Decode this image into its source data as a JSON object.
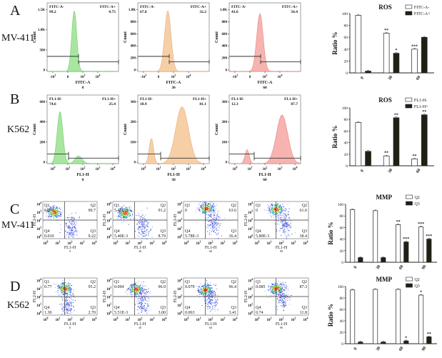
{
  "rows": [
    {
      "letter": "A",
      "cell_line": "MV-411"
    },
    {
      "letter": "B",
      "cell_line": "K562"
    },
    {
      "letter": "C",
      "cell_line": "MV-411"
    },
    {
      "letter": "D",
      "cell_line": "K562"
    }
  ],
  "chart_data": [
    {
      "id": "A-hist-0",
      "type": "area",
      "row": "A",
      "condition": "0",
      "xlabel": "FITC-A",
      "ylabel": "Count",
      "xticks": [
        "-10^3",
        "0",
        "10^3",
        "10^4"
      ],
      "yticks": [
        "0",
        "500",
        "1.0K",
        "1.5K"
      ],
      "gate_left": {
        "label": "FITC-A-",
        "value": "99.2"
      },
      "gate_right": {
        "label": "FITC-A+",
        "value": "0.75"
      },
      "color": "#a8e6a0",
      "stroke": "#5cc05c",
      "peaks": [
        {
          "pos": 0.38,
          "height": 0.96,
          "width": 0.035
        }
      ]
    },
    {
      "id": "A-hist-30",
      "type": "area",
      "row": "A",
      "condition": "30",
      "xlabel": "FITC-A",
      "ylabel": "Count",
      "xticks": [
        "-10^3",
        "0",
        "10^3",
        "10^4"
      ],
      "yticks": [
        "0",
        "200",
        "400",
        "600",
        "800",
        "1.0K"
      ],
      "gate_left": {
        "label": "FITC-A-",
        "value": "67.8"
      },
      "gate_right": {
        "label": "FITC-A+",
        "value": "32.2"
      },
      "color": "#f7cfa6",
      "stroke": "#e0a070",
      "peaks": [
        {
          "pos": 0.42,
          "height": 0.96,
          "width": 0.045
        }
      ]
    },
    {
      "id": "A-hist-60",
      "type": "area",
      "row": "A",
      "condition": "60",
      "xlabel": "FITC-A",
      "ylabel": "Count",
      "xticks": [
        "-10^3",
        "0",
        "10^3",
        "10^4"
      ],
      "yticks": [
        "0",
        "200",
        "400",
        "600",
        "800",
        "1.0K"
      ],
      "gate_left": {
        "label": "FITC-A-",
        "value": "43.6"
      },
      "gate_right": {
        "label": "FITC-A+",
        "value": "56.4"
      },
      "color": "#f6b3b0",
      "stroke": "#e07b78",
      "peaks": [
        {
          "pos": 0.43,
          "height": 0.92,
          "width": 0.045
        }
      ]
    },
    {
      "id": "A-bar",
      "type": "bar",
      "row": "A",
      "title": "ROS",
      "xlabel": "",
      "ylabel": "Ratio %",
      "ylim": [
        0,
        100
      ],
      "yticks": [
        0,
        20,
        40,
        60,
        80,
        100
      ],
      "categories": [
        "0",
        "30",
        "60"
      ],
      "series": [
        {
          "name": "FITC-A-",
          "values": [
            97,
            67,
            40
          ],
          "sig": [
            "",
            "**",
            "***"
          ]
        },
        {
          "name": "FITC-A+",
          "values": [
            3,
            33,
            60
          ],
          "sig": [
            "",
            "*",
            ""
          ]
        }
      ]
    },
    {
      "id": "B-hist-0",
      "type": "area",
      "row": "B",
      "condition": "0",
      "xlabel": "FL1-H",
      "ylabel": "Count",
      "xticks": [
        "10^0",
        "10^1",
        "10^2",
        "10^3",
        "10^4"
      ],
      "yticks": [
        "0",
        "200",
        "400",
        "600"
      ],
      "gate_left": {
        "label": "FL1-H-",
        "value": "74.6"
      },
      "gate_right": {
        "label": "FL1-H+",
        "value": "25.4"
      },
      "color": "#a8e6a0",
      "stroke": "#5cc05c",
      "peaks": [
        {
          "pos": 0.18,
          "height": 0.82,
          "width": 0.04
        },
        {
          "pos": 0.44,
          "height": 0.12,
          "width": 0.05
        }
      ]
    },
    {
      "id": "B-hist-30",
      "type": "area",
      "row": "B",
      "condition": "30",
      "xlabel": "FL1-H",
      "ylabel": "Count",
      "xticks": [
        "10^0",
        "10^1",
        "10^2",
        "10^3",
        "10^4"
      ],
      "yticks": [
        "0",
        "100",
        "200",
        "300"
      ],
      "gate_left": {
        "label": "FL1-H-",
        "value": "18.9"
      },
      "gate_right": {
        "label": "FL1-H+",
        "value": "81.1"
      },
      "color": "#f7cfa6",
      "stroke": "#e0a070",
      "peaks": [
        {
          "pos": 0.19,
          "height": 0.4,
          "width": 0.03
        },
        {
          "pos": 0.62,
          "height": 0.9,
          "width": 0.09
        }
      ]
    },
    {
      "id": "B-hist-60",
      "type": "area",
      "row": "B",
      "condition": "60",
      "xlabel": "FL1-H",
      "ylabel": "Count",
      "xticks": [
        "10^0",
        "10^1",
        "10^2",
        "10^3",
        "10^4"
      ],
      "yticks": [
        "0",
        "100",
        "200",
        "300"
      ],
      "gate_left": {
        "label": "FL1-H-",
        "value": "12.3"
      },
      "gate_right": {
        "label": "FL1-H+",
        "value": "87.7"
      },
      "color": "#f6b3b0",
      "stroke": "#e07b78",
      "peaks": [
        {
          "pos": 0.25,
          "height": 0.22,
          "width": 0.03
        },
        {
          "pos": 0.74,
          "height": 0.77,
          "width": 0.08
        }
      ]
    },
    {
      "id": "B-bar",
      "type": "bar",
      "row": "B",
      "title": "ROS",
      "xlabel": "",
      "ylabel": "Ratio %",
      "ylim": [
        0,
        100
      ],
      "yticks": [
        0,
        20,
        40,
        60,
        80,
        100
      ],
      "categories": [
        "0",
        "30",
        "60"
      ],
      "series": [
        {
          "name": "FL1-H-",
          "values": [
            75,
            17,
            12
          ],
          "sig": [
            "",
            "**",
            "**"
          ]
        },
        {
          "name": "FL1-H+",
          "values": [
            25,
            83,
            88
          ],
          "sig": [
            "",
            "**",
            "**"
          ]
        }
      ]
    },
    {
      "id": "C-dot-0",
      "type": "scatter",
      "row": "C",
      "condition": "0",
      "xlabel": "FL1-H",
      "ylabel": "FL2-H",
      "xticks": [
        "10^0",
        "10^1",
        "10^2",
        "10^3",
        "10^4"
      ],
      "yticks": [
        "10^0",
        "10^1",
        "10^2",
        "10^3",
        "10^4"
      ],
      "quadrants": {
        "Q1": "0.036",
        "Q2": "90.7",
        "Q3": "9.22",
        "Q4": "0.010"
      }
    },
    {
      "id": "C-dot-30",
      "type": "scatter",
      "row": "C",
      "condition": "30",
      "xlabel": "FL1-H",
      "ylabel": "FL2-H",
      "xticks": [
        "10^0",
        "10^1",
        "10^2",
        "10^3",
        "10^4"
      ],
      "yticks": [
        "10^0",
        "10^1",
        "10^2",
        "10^3",
        "10^4"
      ],
      "quadrants": {
        "Q1": "5.40E-3",
        "Q2": "91.2",
        "Q3": "8.79",
        "Q4": "5.40E-3"
      }
    },
    {
      "id": "C-dot-60",
      "type": "scatter",
      "row": "C",
      "condition": "60",
      "xlabel": "FL1-H",
      "ylabel": "FL2-H",
      "xticks": [
        "10^0",
        "10^1",
        "10^2",
        "10^3",
        "10^4"
      ],
      "yticks": [
        "10^0",
        "10^1",
        "10^2",
        "10^3",
        "10^4"
      ],
      "quadrants": {
        "Q1": "0",
        "Q2": "63.6",
        "Q3": "36.4",
        "Q4": "5.78E-3"
      }
    },
    {
      "id": "C-dot-90",
      "type": "scatter",
      "row": "C",
      "condition": "90",
      "xlabel": "FL1-H",
      "ylabel": "FL2-H",
      "xticks": [
        "10^0",
        "10^1",
        "10^2",
        "10^3",
        "10^4"
      ],
      "yticks": [
        "10^0",
        "10^1",
        "10^2",
        "10^3",
        "10^4"
      ],
      "quadrants": {
        "Q1": "0",
        "Q2": "61.6",
        "Q3": "38.4",
        "Q4": "5.80E-3"
      }
    },
    {
      "id": "C-bar",
      "type": "bar",
      "row": "C",
      "title": "MMP",
      "xlabel": "",
      "ylabel": "Ratio %",
      "ylim": [
        0,
        100
      ],
      "yticks": [
        0,
        20,
        40,
        60,
        80,
        100
      ],
      "categories": [
        "0",
        "30",
        "60",
        "90"
      ],
      "series": [
        {
          "name": "Q2",
          "values": [
            91,
            89,
            65,
            61
          ],
          "sig": [
            "",
            "",
            "**",
            "***"
          ]
        },
        {
          "name": "Q3",
          "values": [
            8,
            8,
            35,
            40
          ],
          "sig": [
            "",
            "",
            "***",
            "***"
          ]
        }
      ]
    },
    {
      "id": "D-dot-0",
      "type": "scatter",
      "row": "D",
      "condition": "0",
      "xlabel": "FL1-H",
      "ylabel": "FL2-H",
      "xticks": [
        "10^0",
        "10^1",
        "10^2",
        "10^3",
        "10^4"
      ],
      "yticks": [
        "10^0",
        "10^1",
        "10^2",
        "10^3",
        "10^4"
      ],
      "quadrants": {
        "Q1": "0.77",
        "Q2": "95.2",
        "Q3": "2.70",
        "Q4": "1.30"
      }
    },
    {
      "id": "D-dot-30",
      "type": "scatter",
      "row": "D",
      "condition": "30",
      "xlabel": "FL1-H",
      "ylabel": "FL2-H",
      "xticks": [
        "10^0",
        "10^1",
        "10^2",
        "10^3",
        "10^4"
      ],
      "yticks": [
        "10^0",
        "10^1",
        "10^2",
        "10^3",
        "10^4"
      ],
      "quadrants": {
        "Q1": "0.094",
        "Q2": "96.9",
        "Q3": "3.00",
        "Q4": "5.51E-3"
      }
    },
    {
      "id": "D-dot-60",
      "type": "scatter",
      "row": "D",
      "condition": "60",
      "xlabel": "FL1-H",
      "ylabel": "FL2-H",
      "xticks": [
        "10^0",
        "10^1",
        "10^2",
        "10^3",
        "10^4"
      ],
      "yticks": [
        "10^0",
        "10^1",
        "10^2",
        "10^3",
        "10^4"
      ],
      "quadrants": {
        "Q1": "0.079",
        "Q2": "96.4",
        "Q3": "3.41",
        "Q4": "0.063"
      }
    },
    {
      "id": "D-dot-90",
      "type": "scatter",
      "row": "D",
      "condition": "90",
      "xlabel": "FL1-H",
      "ylabel": "FL2-H",
      "xticks": [
        "10^0",
        "10^1",
        "10^2",
        "10^3",
        "10^4"
      ],
      "yticks": [
        "10^0",
        "10^1",
        "10^2",
        "10^3",
        "10^4"
      ],
      "quadrants": {
        "Q1": "0.085",
        "Q2": "87.3",
        "Q3": "11.8",
        "Q4": "0.74"
      }
    },
    {
      "id": "D-bar",
      "type": "bar",
      "row": "D",
      "title": "MMP",
      "xlabel": "",
      "ylabel": "Ratio %",
      "ylim": [
        0,
        100
      ],
      "yticks": [
        0,
        20,
        40,
        60,
        80,
        100
      ],
      "categories": [
        "0",
        "30",
        "60",
        "90"
      ],
      "series": [
        {
          "name": "Q2",
          "values": [
            94,
            95,
            95,
            85
          ],
          "sig": [
            "",
            "",
            "",
            "*"
          ]
        },
        {
          "name": "Q3",
          "values": [
            3,
            3,
            5,
            12
          ],
          "sig": [
            "",
            "",
            "*",
            "**"
          ]
        }
      ]
    }
  ]
}
